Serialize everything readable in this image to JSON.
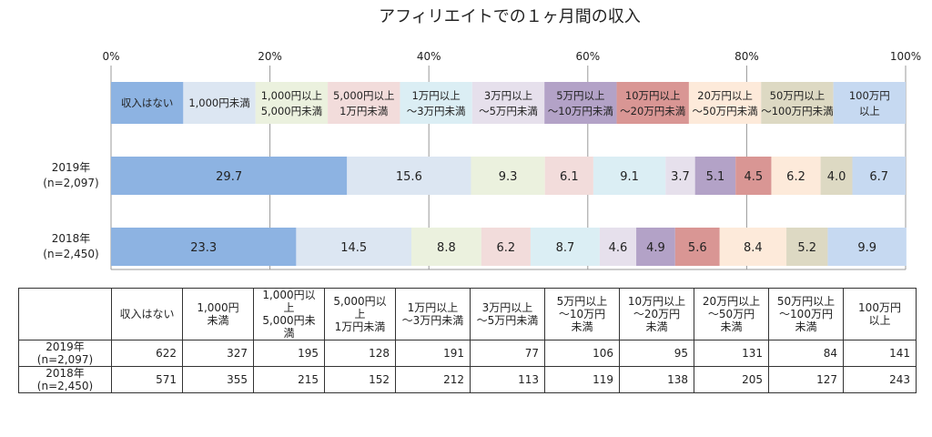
{
  "chart_data": {
    "type": "bar",
    "orientation": "horizontal-stacked-100",
    "title": "アフィリエイトでの１ヶ月間の収入",
    "x_ticks": [
      "0%",
      "20%",
      "40%",
      "60%",
      "80%",
      "100%"
    ],
    "xlim": [
      0,
      100
    ],
    "legend_position": "top",
    "categories": [
      "収入はない",
      "1,000円未満",
      "1,000円以上\n5,000円未満",
      "5,000円以上\n1万円未満",
      "1万円以上\n～3万円未満",
      "3万円以上\n～5万円未満",
      "5万円以上\n～10万円未満",
      "10万円以上\n～20万円未満",
      "20万円以上\n～50万円未満",
      "50万円以上\n～100万円未満",
      "100万円\n以上"
    ],
    "colors": [
      "#8DB3E2",
      "#DCE6F2",
      "#EBF1DE",
      "#F2DCDB",
      "#DBEEF4",
      "#E6E0EC",
      "#B3A2C7",
      "#D99694",
      "#FDEADA",
      "#DDD9C3",
      "#C6D9F1"
    ],
    "series": [
      {
        "name": "2019年\n(n=2,097)",
        "values": [
          29.7,
          15.6,
          9.3,
          6.1,
          9.1,
          3.7,
          5.1,
          4.5,
          6.2,
          4.0,
          6.7
        ]
      },
      {
        "name": "2018年\n(n=2,450)",
        "values": [
          23.3,
          14.5,
          8.8,
          6.2,
          8.7,
          4.6,
          4.9,
          5.6,
          8.4,
          5.2,
          9.9
        ]
      }
    ]
  },
  "table": {
    "headers": [
      "収入はない",
      "1,000円\n未満",
      "1,000円以上\n5,000円未満",
      "5,000円以上\n1万円未満",
      "1万円以上\n～3万円未満",
      "3万円以上\n～5万円未満",
      "5万円以上\n～10万円\n未満",
      "10万円以上\n～20万円\n未満",
      "20万円以上\n～50万円\n未満",
      "50万円以上\n～100万円\n未満",
      "100万円\n以上"
    ],
    "rows": [
      {
        "label": "2019年\n(n=2,097)",
        "values": [
          "622",
          "327",
          "195",
          "128",
          "191",
          "77",
          "106",
          "95",
          "131",
          "84",
          "141"
        ]
      },
      {
        "label": "2018年\n(n=2,450)",
        "values": [
          "571",
          "355",
          "215",
          "152",
          "212",
          "113",
          "119",
          "138",
          "205",
          "127",
          "243"
        ]
      }
    ]
  }
}
